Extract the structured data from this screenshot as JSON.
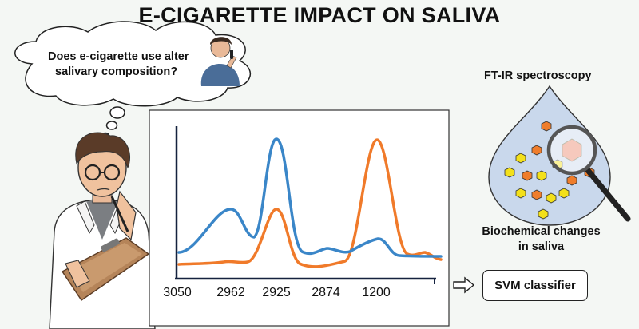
{
  "title": "E-CIGARETTE IMPACT ON SALIVA",
  "thought": {
    "line1": "Does e-cigarette use alter",
    "line2": "salivary composition?"
  },
  "labels": {
    "method": "FT-IR spectroscopy",
    "changes_line1": "Biochemical changes",
    "changes_line2": "in saliva",
    "classifier": "SVM classifier"
  },
  "colors": {
    "series_blue": "#3a86c8",
    "series_orange": "#f07a2a",
    "hex_yellow": "#f3e01a",
    "hex_orange": "#ef7d2c",
    "droplet": "#c9d8ec"
  },
  "chart_data": {
    "type": "line",
    "x_ticks": [
      "3050",
      "2962",
      "2925",
      "2874",
      "1200"
    ],
    "series": [
      {
        "color": "#3a86c8",
        "peaks_at": [
          "2962",
          "2925",
          "2874",
          "1200"
        ],
        "dominant_peak": "2925"
      },
      {
        "color": "#f07a2a",
        "peaks_at": [
          "2925",
          "1200"
        ],
        "dominant_peak": "1200"
      }
    ]
  }
}
